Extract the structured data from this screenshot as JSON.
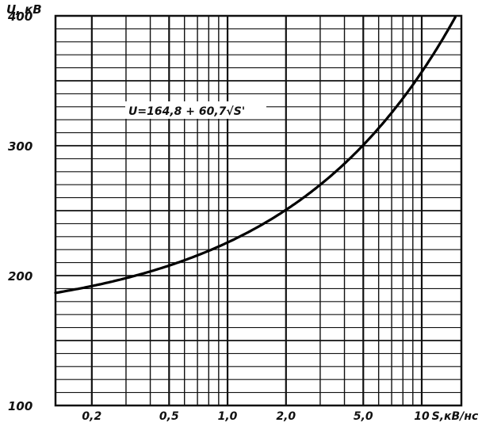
{
  "chart_data": {
    "type": "line",
    "title": "",
    "xlabel": "S,кВ/нс",
    "ylabel": "U, кВ",
    "x_scale": "log",
    "xlim": [
      0.13,
      16.0
    ],
    "ylim": [
      100,
      400
    ],
    "grid": true,
    "x_ticks": [
      {
        "value": 0.2,
        "label": "0,2"
      },
      {
        "value": 0.5,
        "label": "0,5"
      },
      {
        "value": 1.0,
        "label": "1,0"
      },
      {
        "value": 2.0,
        "label": "2,0"
      },
      {
        "value": 5.0,
        "label": "5,0"
      },
      {
        "value": 10.0,
        "label": "10"
      }
    ],
    "y_ticks": [
      {
        "value": 100,
        "label": "100"
      },
      {
        "value": 200,
        "label": "200"
      },
      {
        "value": 300,
        "label": "300"
      },
      {
        "value": 400,
        "label": "400"
      }
    ],
    "x_grid_values": [
      0.2,
      0.3,
      0.4,
      0.5,
      0.6,
      0.7,
      0.8,
      0.9,
      1.0,
      2.0,
      3.0,
      4.0,
      5.0,
      6.0,
      7.0,
      8.0,
      9.0,
      10.0
    ],
    "x_grid_bold": [
      0.2,
      0.5,
      1.0,
      2.0,
      5.0,
      10.0
    ],
    "y_grid_values": [
      100,
      110,
      120,
      130,
      140,
      150,
      160,
      170,
      180,
      190,
      200,
      210,
      220,
      230,
      240,
      250,
      260,
      270,
      280,
      290,
      300,
      310,
      320,
      330,
      340,
      350,
      360,
      370,
      380,
      390,
      400
    ],
    "formula": {
      "a": 164.8,
      "b": 60.7
    },
    "annotation": "U=164,8 + 60,7√S'",
    "series": [
      {
        "x": [
          0.13,
          0.2,
          0.3,
          0.5,
          0.8,
          1.0,
          2.0,
          3.0,
          5.0,
          8.0,
          10.0,
          15.0
        ],
        "y": [
          186.7,
          191.9,
          198.0,
          207.7,
          219.1,
          225.5,
          250.6,
          269.9,
          300.5,
          336.5,
          356.8,
          399.9
        ]
      }
    ]
  }
}
